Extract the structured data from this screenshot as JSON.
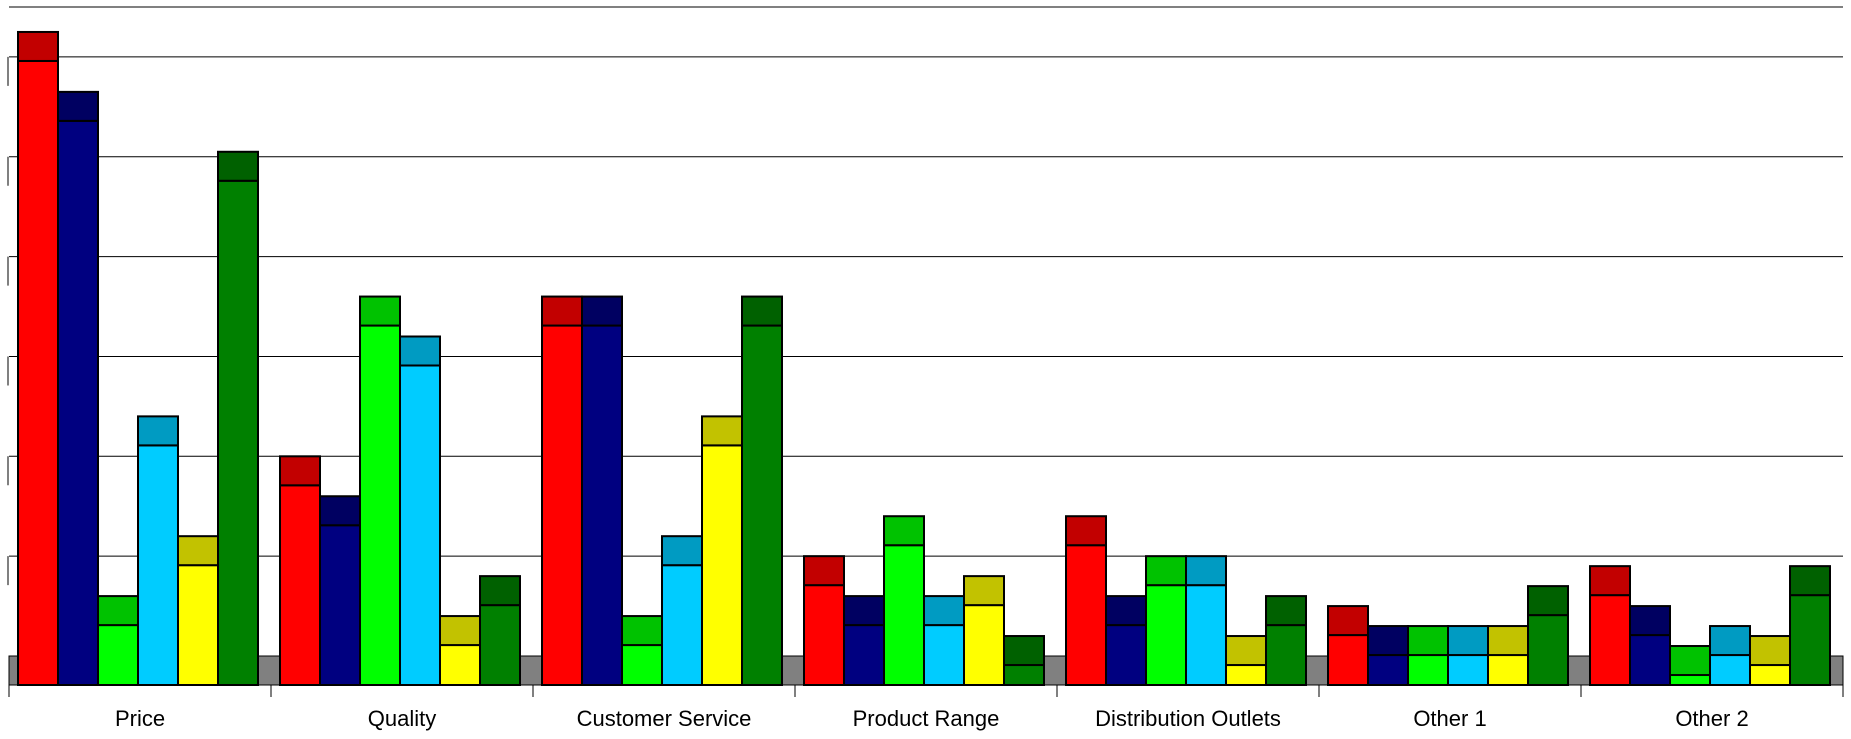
{
  "chart_data": {
    "type": "bar",
    "title": "",
    "xlabel": "",
    "ylabel": "",
    "ylim": [
      0,
      6.5
    ],
    "grid": true,
    "legend": "none",
    "three_d": true,
    "categories": [
      "Price",
      "Quality",
      "Customer Service",
      "Product Range",
      "Distribution Outlets",
      "Other 1",
      "Other 2"
    ],
    "series": [
      {
        "color": "#ff0000",
        "values": [
          6.25,
          2.0,
          3.6,
          1.0,
          1.4,
          0.5,
          0.9
        ]
      },
      {
        "color": "#000080",
        "values": [
          5.65,
          1.6,
          3.6,
          0.6,
          0.6,
          0.3,
          0.5
        ]
      },
      {
        "color": "#00ff00",
        "values": [
          0.6,
          3.6,
          0.4,
          1.4,
          1.0,
          0.3,
          0.1
        ]
      },
      {
        "color": "#00ccff",
        "values": [
          2.4,
          3.2,
          1.2,
          0.6,
          1.0,
          0.3,
          0.3
        ]
      },
      {
        "color": "#ffff00",
        "values": [
          1.2,
          0.4,
          2.4,
          0.8,
          0.2,
          0.3,
          0.2
        ]
      },
      {
        "color": "#008000",
        "values": [
          5.05,
          0.8,
          3.6,
          0.2,
          0.6,
          0.7,
          0.9
        ]
      }
    ]
  }
}
